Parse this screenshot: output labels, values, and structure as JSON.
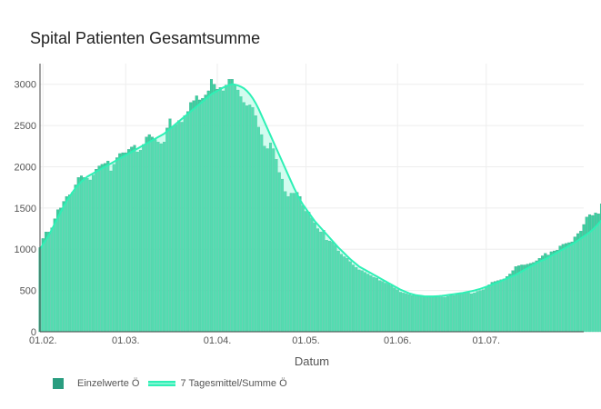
{
  "chart_data": {
    "type": "bar",
    "title": "Spital Patienten Gesamtsumme",
    "xlabel": "Datum",
    "ylabel": "",
    "ylim": [
      0,
      3250
    ],
    "yticks": [
      0,
      500,
      1000,
      1500,
      2000,
      2500,
      3000
    ],
    "xticks": [
      {
        "date": "2021-02-01",
        "label": "01.02."
      },
      {
        "date": "2021-03-01",
        "label": "01.03."
      },
      {
        "date": "2021-04-01",
        "label": "01.04."
      },
      {
        "date": "2021-05-01",
        "label": "01.05."
      },
      {
        "date": "2021-06-01",
        "label": "01.06."
      },
      {
        "date": "2021-07-01",
        "label": "01.07."
      }
    ],
    "x_range": [
      "2021-01-31",
      "2021-08-03"
    ],
    "grid": true,
    "legend_position": "bottom-left",
    "colors": {
      "bar_fill": "#3ccf9f",
      "bar_edge": "#2a9d80",
      "line": "#2ef0b5",
      "area": "#7ff5d2"
    },
    "series": [
      {
        "name": "Einzelwerte Ö",
        "kind": "bar",
        "x_start": "2021-01-31",
        "values": [
          1020,
          1130,
          1210,
          1210,
          1260,
          1370,
          1480,
          1500,
          1580,
          1640,
          1660,
          1690,
          1780,
          1870,
          1890,
          1870,
          1860,
          1840,
          1900,
          1970,
          2010,
          2030,
          2040,
          2070,
          1950,
          2030,
          2110,
          2160,
          2170,
          2170,
          2210,
          2240,
          2260,
          2180,
          2200,
          2270,
          2360,
          2390,
          2360,
          2330,
          2300,
          2280,
          2300,
          2470,
          2580,
          2490,
          2510,
          2560,
          2540,
          2620,
          2670,
          2780,
          2800,
          2860,
          2810,
          2830,
          2870,
          2920,
          3060,
          3000,
          2940,
          2960,
          2920,
          2990,
          3060,
          3060,
          2990,
          2930,
          2850,
          2780,
          2740,
          2750,
          2720,
          2620,
          2480,
          2390,
          2250,
          2220,
          2290,
          2220,
          2090,
          1930,
          1850,
          1700,
          1640,
          1680,
          1680,
          1690,
          1640,
          1530,
          1460,
          1450,
          1380,
          1320,
          1250,
          1210,
          1230,
          1110,
          1100,
          1090,
          1050,
          980,
          940,
          910,
          890,
          850,
          810,
          780,
          750,
          740,
          720,
          700,
          680,
          660,
          650,
          620,
          610,
          590,
          580,
          560,
          530,
          510,
          480,
          470,
          460,
          450,
          440,
          440,
          430,
          430,
          420,
          420,
          420,
          420,
          420,
          420,
          420,
          420,
          430,
          440,
          440,
          450,
          460,
          470,
          480,
          470,
          460,
          470,
          490,
          500,
          510,
          540,
          570,
          600,
          610,
          620,
          630,
          640,
          670,
          700,
          740,
          790,
          800,
          810,
          810,
          820,
          830,
          840,
          860,
          890,
          920,
          950,
          930,
          970,
          980,
          990,
          1040,
          1060,
          1070,
          1080,
          1090,
          1150,
          1190,
          1220,
          1300,
          1390,
          1420,
          1410,
          1440,
          1430,
          1550
        ]
      },
      {
        "name": "7 Tagesmittel/Summe Ö",
        "kind": "area",
        "x_start": "2021-01-31",
        "values": [
          1000,
          1060,
          1110,
          1170,
          1240,
          1310,
          1380,
          1450,
          1520,
          1580,
          1640,
          1690,
          1740,
          1780,
          1820,
          1850,
          1880,
          1900,
          1920,
          1940,
          1960,
          1980,
          2000,
          2020,
          2040,
          2060,
          2080,
          2100,
          2120,
          2140,
          2160,
          2180,
          2200,
          2220,
          2240,
          2260,
          2280,
          2300,
          2320,
          2340,
          2360,
          2380,
          2400,
          2430,
          2460,
          2490,
          2520,
          2550,
          2580,
          2610,
          2640,
          2670,
          2700,
          2730,
          2760,
          2790,
          2820,
          2850,
          2880,
          2900,
          2920,
          2940,
          2960,
          2975,
          2990,
          3000,
          2995,
          2985,
          2970,
          2950,
          2920,
          2880,
          2830,
          2770,
          2700,
          2620,
          2540,
          2460,
          2380,
          2300,
          2220,
          2140,
          2060,
          1980,
          1900,
          1820,
          1740,
          1670,
          1600,
          1540,
          1490,
          1440,
          1390,
          1340,
          1300,
          1260,
          1220,
          1180,
          1140,
          1100,
          1060,
          1020,
          985,
          950,
          915,
          880,
          850,
          820,
          790,
          770,
          750,
          730,
          710,
          690,
          670,
          650,
          630,
          610,
          590,
          570,
          550,
          530,
          510,
          495,
          480,
          465,
          455,
          445,
          440,
          435,
          430,
          428,
          428,
          428,
          430,
          432,
          435,
          440,
          445,
          450,
          455,
          460,
          465,
          470,
          478,
          485,
          492,
          500,
          510,
          520,
          532,
          545,
          558,
          572,
          586,
          600,
          615,
          630,
          645,
          660,
          675,
          690,
          710,
          730,
          750,
          770,
          790,
          810,
          830,
          850,
          865,
          880,
          900,
          920,
          940,
          960,
          980,
          1000,
          1020,
          1040,
          1060,
          1080,
          1105,
          1130,
          1155,
          1180,
          1205,
          1235,
          1270,
          1310,
          1350,
          1395,
          1425,
          1440
        ]
      }
    ]
  }
}
